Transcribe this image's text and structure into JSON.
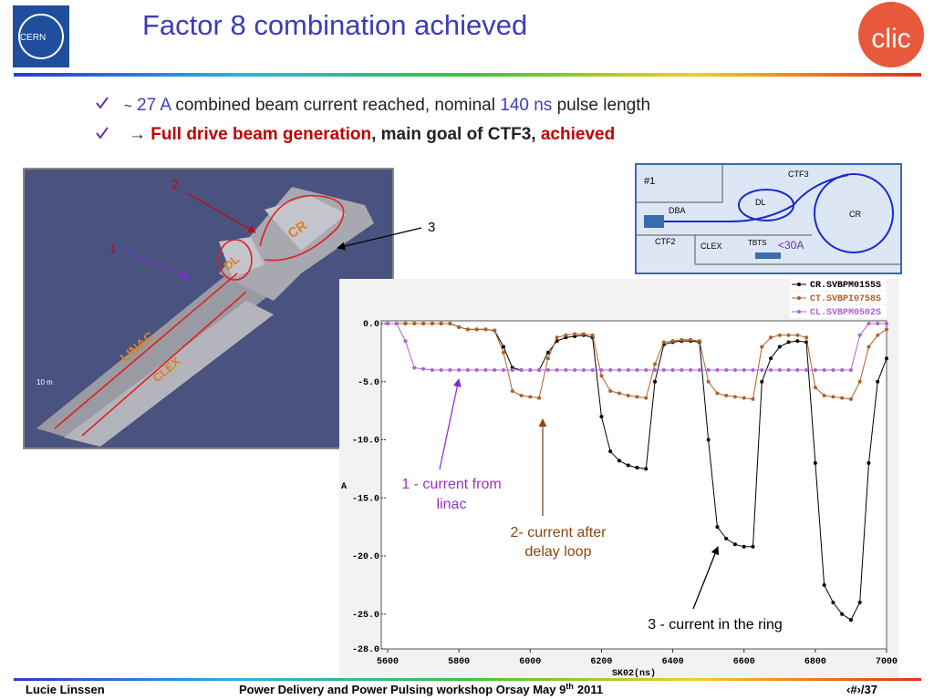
{
  "header": {
    "title": "Factor 8 combination achieved",
    "logos": {
      "left": "CERN",
      "right": "clic"
    }
  },
  "bullets": [
    {
      "parts": [
        "~",
        "27 A",
        "combined beam current reached, nominal",
        "140 ns",
        "pulse length"
      ]
    },
    {
      "parts": [
        "→",
        "Full drive beam generation",
        ", main goal of CTF3,",
        "achieved"
      ]
    }
  ],
  "layout_image": {
    "labels": [
      "2",
      "1",
      "CR",
      "DL",
      "LINAC",
      "CLEX",
      "10 m",
      "3"
    ]
  },
  "schematic": {
    "labels": [
      "CTF3",
      "#1",
      "DL",
      "DBA",
      "CR",
      "CTF2",
      "CLEX",
      "TBTS",
      "<30A"
    ]
  },
  "chart_data": {
    "type": "line",
    "x_label": "SK02(ns)",
    "y_label": "A",
    "xlim": [
      5600,
      7000
    ],
    "ylim": [
      -28,
      0
    ],
    "xticks": [
      5600,
      5800,
      6000,
      6200,
      6400,
      6600,
      6800,
      7000
    ],
    "yticks": [
      {
        "value": 0,
        "label": "0.0"
      },
      {
        "value": -5,
        "label": "-5.0"
      },
      {
        "value": -10,
        "label": "-10.0"
      },
      {
        "value": -15,
        "label": "-15.0"
      },
      {
        "value": -20,
        "label": "-20.0"
      },
      {
        "value": -25,
        "label": "-25.0"
      },
      {
        "value": -28,
        "label": "-28.0"
      }
    ],
    "grid": false,
    "legend": "upper right",
    "x": [
      5600,
      5625,
      5650,
      5675,
      5700,
      5725,
      5750,
      5775,
      5800,
      5825,
      5850,
      5875,
      5900,
      5925,
      5950,
      5975,
      6000,
      6025,
      6050,
      6075,
      6100,
      6125,
      6150,
      6175,
      6200,
      6225,
      6250,
      6275,
      6300,
      6325,
      6350,
      6375,
      6400,
      6425,
      6450,
      6475,
      6500,
      6525,
      6550,
      6575,
      6600,
      6625,
      6650,
      6675,
      6700,
      6725,
      6750,
      6775,
      6800,
      6825,
      6850,
      6875,
      6900,
      6925,
      6950,
      6975,
      7000
    ],
    "series": [
      {
        "name": "CR.SVBPM0155S",
        "color": "#000000",
        "values": [
          0,
          0,
          0,
          0,
          0,
          0,
          0,
          0,
          -0.3,
          -0.5,
          -0.5,
          -0.5,
          -0.6,
          -2.0,
          -3.8,
          -4.0,
          -4.0,
          -4.0,
          -2.5,
          -1.5,
          -1.2,
          -1.1,
          -1.0,
          -1.2,
          -8.0,
          -11.0,
          -11.8,
          -12.2,
          -12.4,
          -12.5,
          -5.0,
          -1.8,
          -1.6,
          -1.5,
          -1.5,
          -1.6,
          -10.0,
          -17.5,
          -18.5,
          -19.0,
          -19.2,
          -19.2,
          -5.0,
          -3.0,
          -2.0,
          -1.6,
          -1.5,
          -1.6,
          -12.0,
          -22.5,
          -24.0,
          -25.0,
          -25.5,
          -24.0,
          -12.0,
          -5.0,
          -3.0
        ]
      },
      {
        "name": "CT.SVBPI0758S",
        "color": "#b0602a",
        "values": [
          0,
          0,
          0,
          0,
          0,
          0,
          0,
          0,
          -0.3,
          -0.5,
          -0.5,
          -0.5,
          -0.6,
          -2.5,
          -5.8,
          -6.2,
          -6.3,
          -6.4,
          -3.0,
          -1.2,
          -1.0,
          -0.9,
          -0.9,
          -1.0,
          -4.5,
          -5.8,
          -6.0,
          -6.2,
          -6.3,
          -6.4,
          -3.5,
          -1.6,
          -1.5,
          -1.4,
          -1.4,
          -1.5,
          -5.0,
          -6.0,
          -6.2,
          -6.3,
          -6.4,
          -6.5,
          -2.0,
          -1.2,
          -1.0,
          -1.0,
          -1.0,
          -1.2,
          -5.5,
          -6.2,
          -6.3,
          -6.4,
          -6.5,
          -5.0,
          -2.0,
          -1.0,
          -0.5
        ]
      },
      {
        "name": "CL.SVBPM0502S",
        "color": "#b060d8",
        "values": [
          0,
          0,
          -1.5,
          -3.8,
          -3.9,
          -4,
          -4,
          -4,
          -4,
          -4,
          -4,
          -4,
          -4,
          -4,
          -4,
          -4,
          -4,
          -4,
          -4,
          -4,
          -4,
          -4,
          -4,
          -4,
          -4,
          -4,
          -4,
          -4,
          -4,
          -4,
          -4,
          -4,
          -4,
          -4,
          -4,
          -4,
          -4,
          -4,
          -4,
          -4,
          -4,
          -4,
          -4,
          -4,
          -4,
          -4,
          -4,
          -4,
          -4,
          -4,
          -4,
          -4,
          -4,
          -1.0,
          0,
          0,
          0
        ]
      }
    ],
    "annotations": [
      {
        "lines": [
          "1 - current from",
          "linac"
        ],
        "color": "#9b30c8"
      },
      {
        "lines": [
          "2- current after",
          "delay loop"
        ],
        "color": "#8b4513"
      },
      {
        "lines": [
          "3 - current in the ring"
        ],
        "color": "#000000"
      }
    ]
  },
  "footer": {
    "author": "Lucie Linssen",
    "event": [
      "Power Delivery and Power Pulsing workshop Orsay May 9",
      "th",
      "2011"
    ],
    "page": "‹#›/37"
  }
}
